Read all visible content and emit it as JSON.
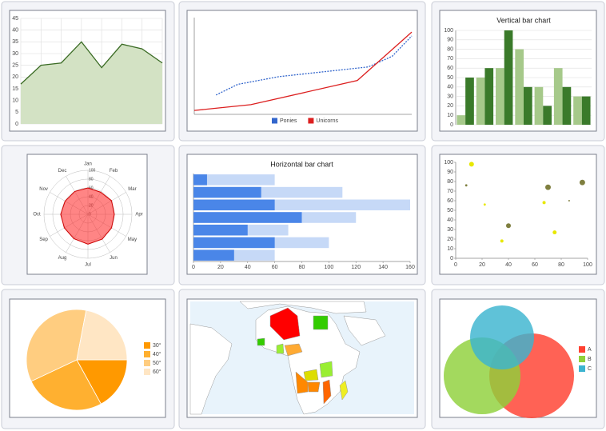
{
  "chart_data": [
    {
      "type": "area",
      "values": [
        17,
        25,
        26,
        35,
        24,
        34,
        32,
        26
      ],
      "color": "#3a6b24",
      "fill": "#d3e2c4",
      "ylim": [
        0,
        45
      ],
      "yticks": [
        0,
        5,
        10,
        15,
        20,
        25,
        30,
        35,
        40,
        45
      ],
      "grid": true
    },
    {
      "type": "line",
      "xlim": [
        0,
        10
      ],
      "ylim": [
        0,
        10
      ],
      "legend": "bottom",
      "series": [
        {
          "name": "Ponies",
          "color": "#3366cc",
          "dashed": true,
          "x": [
            1,
            2,
            3.9,
            8,
            9.1,
            10
          ],
          "values": [
            2,
            3.1,
            3.9,
            4.9,
            6,
            8.1
          ]
        },
        {
          "name": "Unicorns",
          "color": "#dc1f1f",
          "x": [
            0,
            2.6,
            7.5,
            10
          ],
          "values": [
            0.4,
            1,
            3.5,
            8.5
          ]
        }
      ]
    },
    {
      "type": "bar",
      "title": "Vertical bar chart",
      "ylim": [
        0,
        100
      ],
      "yticks": [
        0,
        10,
        20,
        30,
        40,
        50,
        60,
        70,
        80,
        90,
        100
      ],
      "grid": true,
      "series": [
        {
          "color": "#a6c98a",
          "values": [
            10,
            50,
            60,
            80,
            40,
            60,
            30
          ]
        },
        {
          "color": "#3a7a2a",
          "values": [
            50,
            60,
            100,
            40,
            20,
            40,
            30
          ]
        }
      ]
    },
    {
      "type": "radar",
      "categories": [
        "Jan",
        "Feb",
        "Mar",
        "Apr",
        "May",
        "Jun",
        "Jul",
        "Aug",
        "Sep",
        "Oct",
        "Nov",
        "Dec"
      ],
      "values": [
        60,
        58,
        62,
        60,
        62,
        65,
        68,
        64,
        62,
        62,
        60,
        60
      ],
      "color": "#ff2020",
      "rlim": [
        0,
        100
      ],
      "rticks": [
        0,
        20,
        40,
        60,
        80,
        100
      ]
    },
    {
      "type": "hbar",
      "title": "Horizontal bar chart",
      "xlim": [
        0,
        160
      ],
      "xticks": [
        0,
        20,
        40,
        60,
        80,
        100,
        120,
        140,
        160
      ],
      "series": [
        {
          "color": "#c6d9f7",
          "values": [
            60,
            110,
            160,
            120,
            70,
            100,
            60
          ]
        },
        {
          "color": "#4a86e8",
          "values": [
            10,
            50,
            60,
            80,
            40,
            60,
            30
          ]
        }
      ]
    },
    {
      "type": "bubble",
      "xlim": [
        0,
        100
      ],
      "xticks": [
        0,
        20,
        40,
        60,
        80,
        100
      ],
      "ylim": [
        0,
        100
      ],
      "yticks": [
        0,
        10,
        20,
        30,
        40,
        50,
        60,
        70,
        80,
        90,
        100
      ],
      "x": [
        12,
        8,
        22,
        40,
        35,
        70,
        67,
        75,
        86,
        96
      ],
      "values": [
        98,
        76,
        56,
        34,
        18,
        74,
        58,
        27,
        60,
        79
      ],
      "sizes": [
        9,
        2,
        2,
        9,
        4,
        12,
        4,
        6,
        1,
        12
      ],
      "colors": [
        "#e8e800",
        "#7f7f3f",
        "#e8e800",
        "#7f7f3f",
        "#e8e800",
        "#7f7f3f",
        "#e8e800",
        "#e8e800",
        "#7f7f3f",
        "#7f7f3f"
      ]
    },
    {
      "type": "pie",
      "categories": [
        "30°",
        "40°",
        "50°",
        "60°"
      ],
      "values": [
        17,
        26,
        35,
        22
      ],
      "colors": [
        "#ff9900",
        "#ffb030",
        "#ffcd80",
        "#ffe6c4"
      ],
      "legend": "right"
    },
    {
      "type": "venn",
      "categories": [
        "A",
        "B",
        "C"
      ],
      "values": [
        100,
        82,
        57
      ],
      "colors": [
        "#ff4030",
        "#8fd13a",
        "#3cb4d0"
      ],
      "legend": "right"
    }
  ]
}
